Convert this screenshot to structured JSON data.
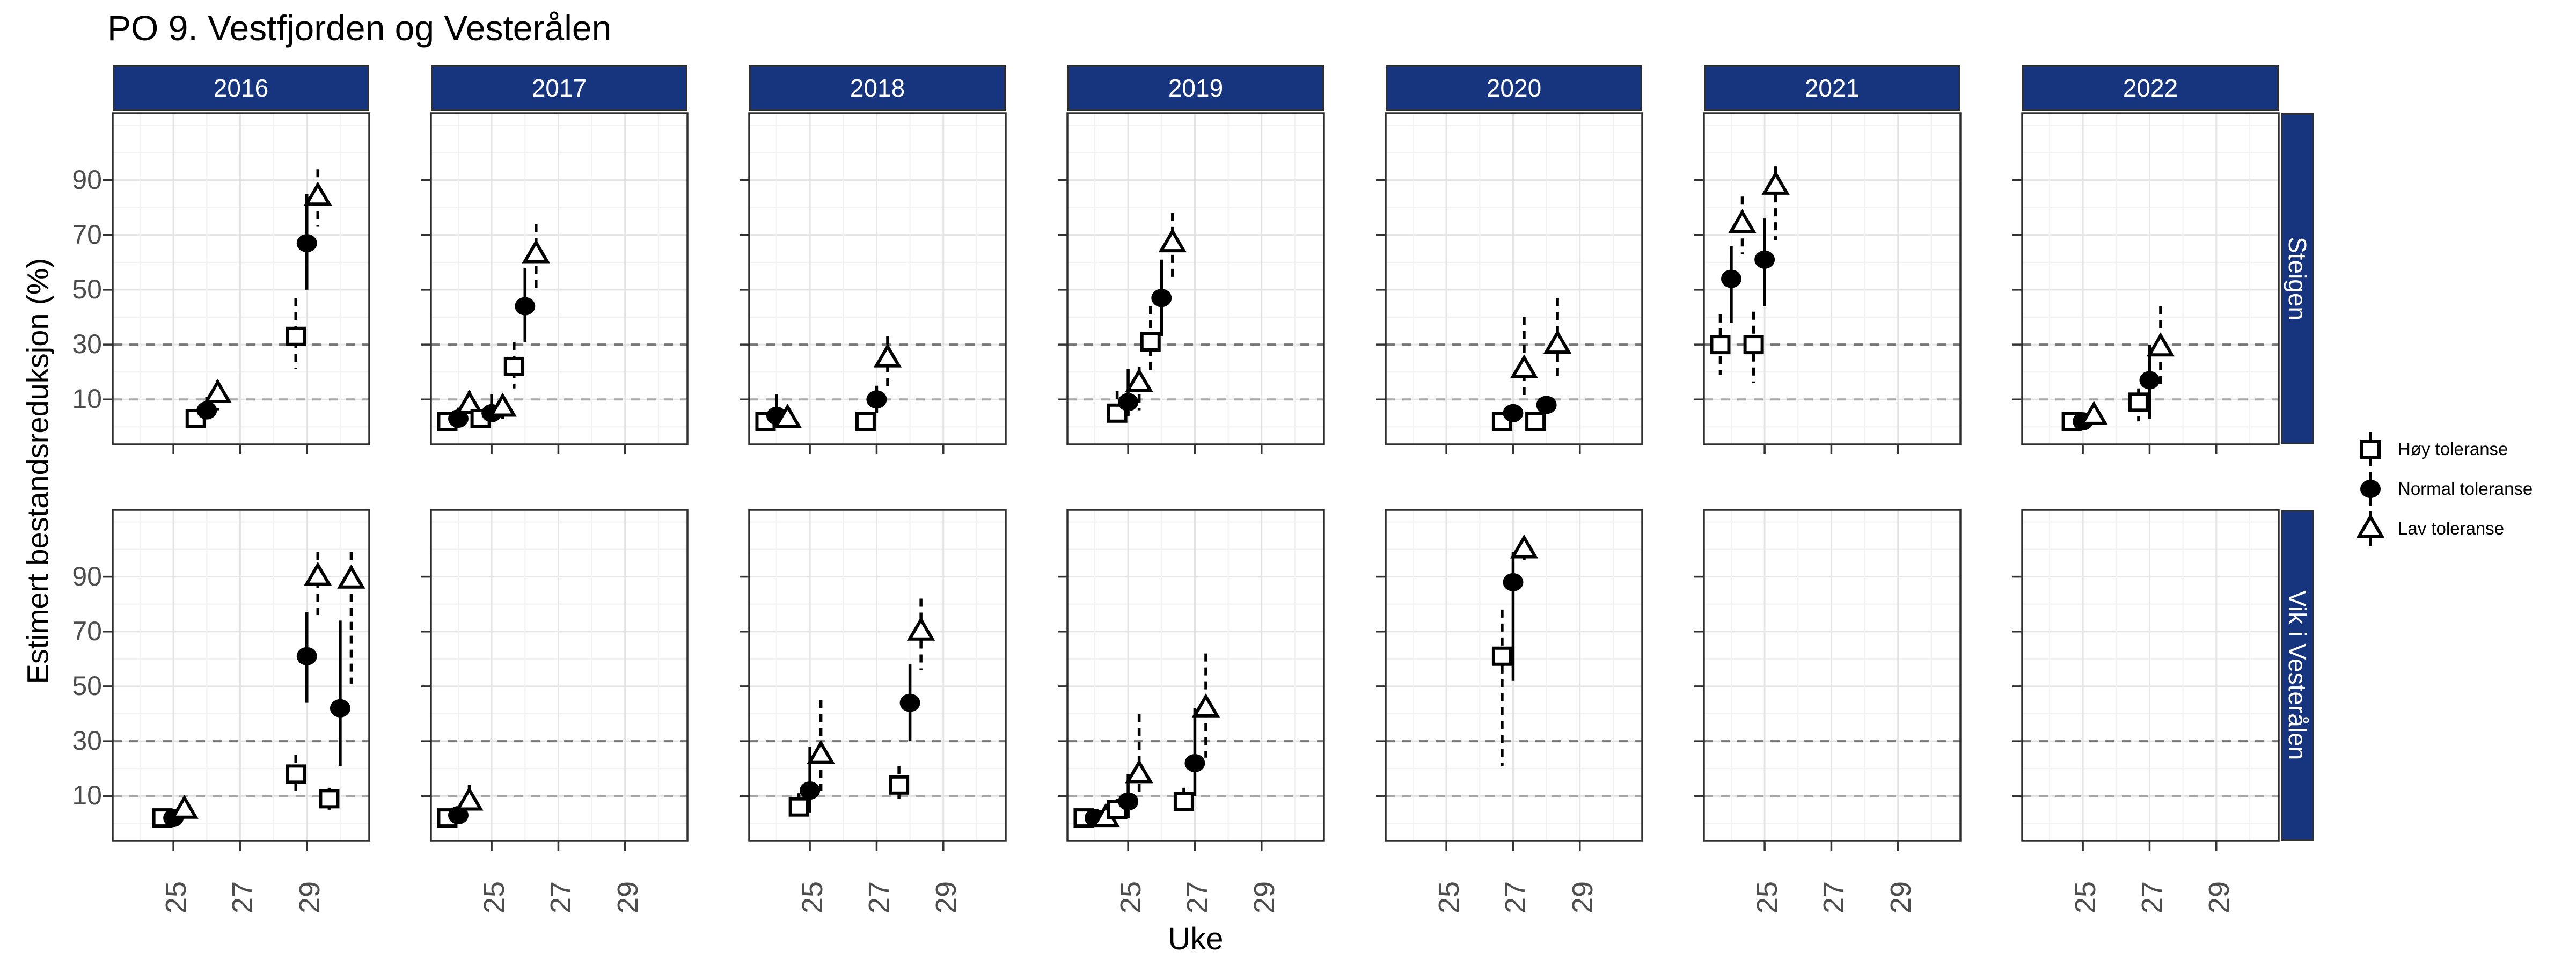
{
  "title": "PO 9. Vestfjorden og Vesterålen",
  "axes": {
    "x_title": "Uke",
    "y_title": "Estimert bestandsreduksjon (%)",
    "x_tick_labels": [
      "25",
      "27",
      "29"
    ],
    "y_tick_labels": [
      "90",
      "70",
      "50",
      "30",
      "10"
    ]
  },
  "legend": {
    "items": [
      {
        "label": "Høy toleranse",
        "shape": "square-open"
      },
      {
        "label": "Normal toleranse",
        "shape": "circle-filled"
      },
      {
        "label": "Lav toleranse",
        "shape": "triangle-open"
      }
    ]
  },
  "colors": {
    "strip_bg": "#17357F",
    "strip_text": "#FFFFFF",
    "panel_border": "#2F2F2F",
    "grid_major": "#E4E4E4",
    "grid_minor": "#F2F2F2",
    "ref_line_30": "#787878",
    "ref_line_10": "#A8A8A8",
    "axis_text": "#4D4D4D",
    "marker": "#000000"
  },
  "chart_data": {
    "type": "scatter",
    "title": "PO 9. Vestfjorden og Vesterålen",
    "xlabel": "Uke",
    "ylabel": "Estimert bestandsreduksjon (%)",
    "facet_rows": [
      "Steigen",
      "Vik i Vesterålen"
    ],
    "facet_cols": [
      "2016",
      "2017",
      "2018",
      "2019",
      "2020",
      "2021",
      "2022"
    ],
    "x_range": [
      23.18,
      30.87
    ],
    "y_range": [
      -6.4,
      114.4
    ],
    "x_ticks": [
      25,
      27,
      29
    ],
    "y_ticks": [
      90,
      70,
      50,
      30,
      10
    ],
    "grid": {
      "x_minor": [
        24,
        26,
        28,
        30
      ],
      "y_lines": [
        0,
        10,
        20,
        30,
        40,
        50,
        60,
        70,
        80,
        90,
        100,
        110
      ]
    },
    "reference_lines": [
      {
        "y": 30,
        "style": "dashed"
      },
      {
        "y": 10,
        "style": "dashed"
      }
    ],
    "dodge": 0.33,
    "series": [
      {
        "key": "hoy",
        "label": "Høy toleranse",
        "marker": "square-open",
        "ci_style": "dashed"
      },
      {
        "key": "normal",
        "label": "Normal toleranse",
        "marker": "circle-filled",
        "ci_style": "solid"
      },
      {
        "key": "lav",
        "label": "Lav toleranse",
        "marker": "triangle-open",
        "ci_style": "dashed"
      }
    ],
    "panels": [
      {
        "row": "Steigen",
        "col": "2016",
        "groups": [
          {
            "week": 26,
            "hoy": {
              "v": 3,
              "ci": [
                1,
                6
              ]
            },
            "normal": {
              "v": 6,
              "ci": [
                3,
                11
              ]
            },
            "lav": {
              "v": 12,
              "ci": [
                6,
                17
              ]
            }
          },
          {
            "week": 29,
            "hoy": {
              "v": 33,
              "ci": [
                21,
                47
              ]
            },
            "normal": {
              "v": 67,
              "ci": [
                50,
                85
              ]
            },
            "lav": {
              "v": 84,
              "ci": [
                73,
                94
              ]
            }
          }
        ]
      },
      {
        "row": "Steigen",
        "col": "2017",
        "groups": [
          {
            "week": 24,
            "hoy": {
              "v": 2,
              "ci": [
                1,
                4
              ]
            },
            "normal": {
              "v": 3,
              "ci": [
                1,
                7
              ]
            },
            "lav": {
              "v": 8,
              "ci": [
                4,
                13
              ]
            }
          },
          {
            "week": 25,
            "hoy": {
              "v": 3,
              "ci": [
                1,
                6
              ]
            },
            "normal": {
              "v": 5,
              "ci": [
                2,
                12
              ]
            },
            "lav": {
              "v": 7,
              "ci": [
                3,
                11
              ]
            }
          },
          {
            "week": 26,
            "hoy": {
              "v": 22,
              "ci": [
                14,
                31
              ]
            },
            "normal": {
              "v": 44,
              "ci": [
                31,
                58
              ]
            },
            "lav": {
              "v": 63,
              "ci": [
                49,
                74
              ]
            }
          }
        ]
      },
      {
        "row": "Steigen",
        "col": "2018",
        "groups": [
          {
            "week": 24,
            "hoy": {
              "v": 2,
              "ci": [
                1,
                4
              ]
            },
            "normal": {
              "v": 4,
              "ci": [
                2,
                12
              ]
            },
            "lav": {
              "v": 3,
              "ci": [
                1,
                6
              ]
            }
          },
          {
            "week": 27,
            "hoy": {
              "v": 2,
              "ci": [
                1,
                4
              ]
            },
            "normal": {
              "v": 10,
              "ci": [
                5,
                15
              ]
            },
            "lav": {
              "v": 25,
              "ci": [
                14,
                33
              ]
            }
          }
        ]
      },
      {
        "row": "Steigen",
        "col": "2019",
        "groups": [
          {
            "week": 25,
            "hoy": {
              "v": 5,
              "ci": [
                2,
                13
              ]
            },
            "normal": {
              "v": 9,
              "ci": [
                4,
                21
              ]
            },
            "lav": {
              "v": 16,
              "ci": [
                6,
                22
              ]
            }
          },
          {
            "week": 26,
            "hoy": {
              "v": 31,
              "ci": [
                20,
                44
              ]
            },
            "normal": {
              "v": 47,
              "ci": [
                33,
                61
              ]
            },
            "lav": {
              "v": 67,
              "ci": [
                54,
                78
              ]
            }
          }
        ]
      },
      {
        "row": "Steigen",
        "col": "2020",
        "groups": [
          {
            "week": 27,
            "hoy": {
              "v": 2,
              "ci": [
                1,
                4
              ]
            },
            "normal": {
              "v": 5,
              "ci": [
                3,
                8
              ]
            },
            "lav": {
              "v": 21,
              "ci": [
                10,
                40
              ]
            }
          },
          {
            "week": 28,
            "hoy": {
              "v": 2,
              "ci": [
                1,
                5
              ]
            },
            "normal": {
              "v": 8,
              "ci": [
                5,
                11
              ]
            },
            "lav": {
              "v": 30,
              "ci": [
                17,
                47
              ]
            }
          }
        ]
      },
      {
        "row": "Steigen",
        "col": "2021",
        "groups": [
          {
            "week": 24,
            "hoy": {
              "v": 30,
              "ci": [
                19,
                41
              ]
            },
            "normal": {
              "v": 54,
              "ci": [
                38,
                66
              ]
            },
            "lav": {
              "v": 74,
              "ci": [
                63,
                84
              ]
            }
          },
          {
            "week": 25,
            "hoy": {
              "v": 30,
              "ci": [
                16,
                42
              ]
            },
            "normal": {
              "v": 61,
              "ci": [
                44,
                76
              ]
            },
            "lav": {
              "v": 88,
              "ci": [
                68,
                95
              ]
            }
          }
        ]
      },
      {
        "row": "Steigen",
        "col": "2022",
        "groups": [
          {
            "week": 25,
            "hoy": {
              "v": 2,
              "ci": null
            },
            "normal": {
              "v": 2,
              "ci": null
            },
            "lav": {
              "v": 4,
              "ci": [
                2,
                6
              ]
            }
          },
          {
            "week": 27,
            "hoy": {
              "v": 9,
              "ci": [
                2,
                14
              ]
            },
            "normal": {
              "v": 17,
              "ci": [
                3,
                30
              ]
            },
            "lav": {
              "v": 29,
              "ci": [
                15,
                44
              ]
            }
          }
        ]
      },
      {
        "row": "Vik i Vesterålen",
        "col": "2016",
        "groups": [
          {
            "week": 25,
            "hoy": {
              "v": 2,
              "ci": null
            },
            "normal": {
              "v": 2,
              "ci": null
            },
            "lav": {
              "v": 5,
              "ci": [
                2,
                8
              ]
            }
          },
          {
            "week": 29,
            "hoy": {
              "v": 18,
              "ci": [
                10,
                25
              ]
            },
            "normal": {
              "v": 61,
              "ci": [
                44,
                77
              ]
            },
            "lav": {
              "v": 90,
              "ci": [
                76,
                99
              ]
            }
          },
          {
            "week": 30,
            "hoy": {
              "v": 9,
              "ci": [
                4,
                13
              ]
            },
            "normal": {
              "v": 42,
              "ci": [
                21,
                74
              ]
            },
            "lav": {
              "v": 89,
              "ci": [
                51,
                99
              ]
            }
          }
        ]
      },
      {
        "row": "Vik i Vesterålen",
        "col": "2017",
        "groups": [
          {
            "week": 24,
            "hoy": {
              "v": 2,
              "ci": null
            },
            "normal": {
              "v": 3,
              "ci": null
            },
            "lav": {
              "v": 8,
              "ci": [
                4,
                14
              ]
            }
          }
        ]
      },
      {
        "row": "Vik i Vesterålen",
        "col": "2018",
        "groups": [
          {
            "week": 25,
            "hoy": {
              "v": 6,
              "ci": [
                3,
                11
              ]
            },
            "normal": {
              "v": 12,
              "ci": [
                4,
                28
              ]
            },
            "lav": {
              "v": 25,
              "ci": [
                12,
                45
              ]
            }
          },
          {
            "week": 28,
            "hoy": {
              "v": 14,
              "ci": [
                9,
                21
              ]
            },
            "normal": {
              "v": 44,
              "ci": [
                30,
                58
              ]
            },
            "lav": {
              "v": 70,
              "ci": [
                56,
                82
              ]
            }
          }
        ]
      },
      {
        "row": "Vik i Vesterålen",
        "col": "2019",
        "groups": [
          {
            "week": 24,
            "hoy": {
              "v": 2,
              "ci": null
            },
            "normal": {
              "v": 2,
              "ci": null
            },
            "lav": {
              "v": 2,
              "ci": null
            }
          },
          {
            "week": 25,
            "hoy": {
              "v": 5,
              "ci": [
                2,
                9
              ]
            },
            "normal": {
              "v": 8,
              "ci": [
                2,
                18
              ]
            },
            "lav": {
              "v": 18,
              "ci": [
                10,
                40
              ]
            }
          },
          {
            "week": 27,
            "hoy": {
              "v": 8,
              "ci": [
                4,
                13
              ]
            },
            "normal": {
              "v": 22,
              "ci": [
                10,
                42
              ]
            },
            "lav": {
              "v": 42,
              "ci": [
                24,
                62
              ]
            }
          }
        ]
      },
      {
        "row": "Vik i Vesterålen",
        "col": "2020",
        "groups": [
          {
            "week": 27,
            "hoy": {
              "v": 61,
              "ci": [
                21,
                78
              ]
            },
            "normal": {
              "v": 88,
              "ci": [
                52,
                99
              ]
            },
            "lav": {
              "v": 100,
              "ci": [
                96,
                103
              ]
            }
          }
        ]
      },
      {
        "row": "Vik i Vesterålen",
        "col": "2021",
        "groups": []
      },
      {
        "row": "Vik i Vesterålen",
        "col": "2022",
        "groups": []
      }
    ]
  }
}
